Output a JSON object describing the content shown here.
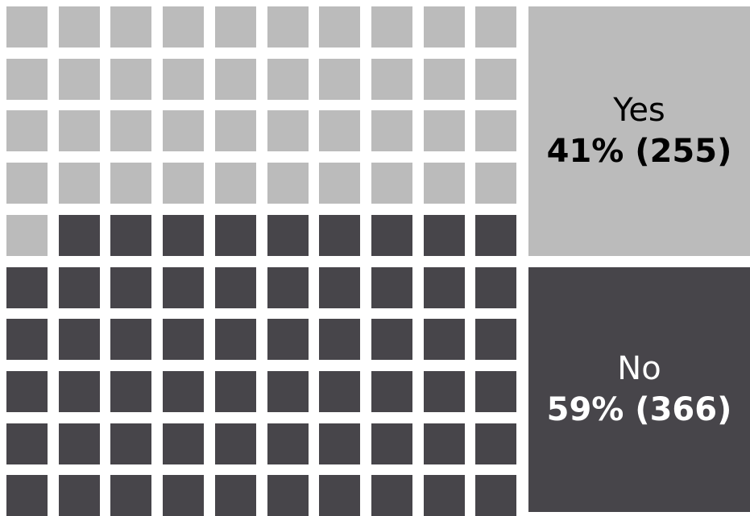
{
  "chart_data": {
    "type": "waffle",
    "grid": {
      "rows": 10,
      "columns": 10
    },
    "fill_order": "row-major from top-left",
    "series": [
      {
        "name": "Yes",
        "percent": 41,
        "count": 255,
        "cells": 41,
        "color": "#bbbbbb",
        "text_color": "#000000"
      },
      {
        "name": "No",
        "percent": 59,
        "count": 366,
        "cells": 59,
        "color": "#47454a",
        "text_color": "#ffffff"
      }
    ]
  },
  "legend": {
    "yes": {
      "label": "Yes",
      "value": "41% (255)"
    },
    "no": {
      "label": "No",
      "value": "59% (366)"
    }
  }
}
